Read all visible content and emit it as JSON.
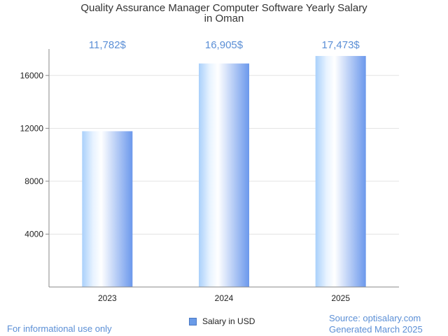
{
  "title_line1": "Quality Assurance Manager Computer Software Yearly Salary",
  "title_line2": "in Oman",
  "chart_data": {
    "type": "bar",
    "categories": [
      "2023",
      "2024",
      "2025"
    ],
    "series": [
      {
        "name": "Salary in USD",
        "values": [
          11782,
          16905,
          17473
        ]
      }
    ],
    "data_labels": [
      "11,782$",
      "16,905$",
      "17,473$"
    ],
    "yticks": [
      4000,
      8000,
      12000,
      16000
    ],
    "ylim": [
      0,
      18000
    ],
    "grid": true,
    "legend_position": "bottom",
    "colors": {
      "bar_light": "#e8f3ff",
      "bar_mid": "#a9d0fb",
      "bar_dark": "#6b98ec",
      "label": "#5b8fd6",
      "grid": "#e3e3e3",
      "axis": "#888888"
    }
  },
  "footer": {
    "disclaimer": "For informational use only",
    "source": "Source: optisalary.com",
    "generated": "Generated March 2025"
  }
}
